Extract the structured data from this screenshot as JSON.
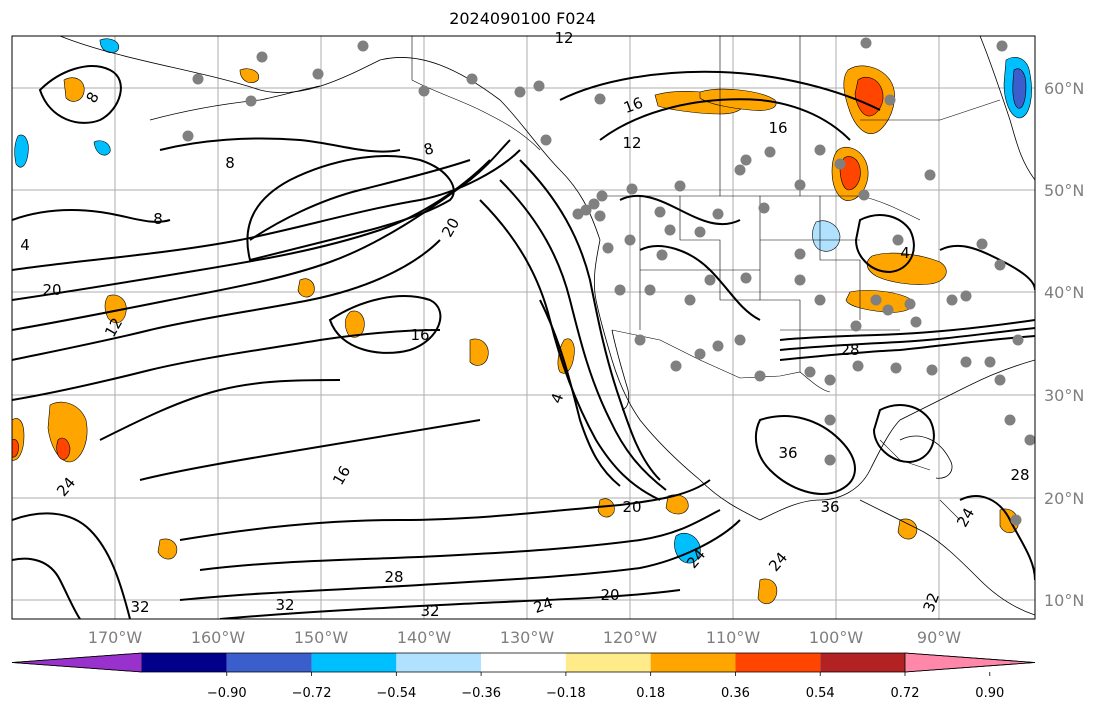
{
  "title": "2024090100 F024",
  "map": {
    "lat_ticks": [
      "60°N",
      "50°N",
      "40°N",
      "30°N",
      "20°N",
      "10°N"
    ],
    "lon_ticks": [
      "170°W",
      "160°W",
      "150°W",
      "140°W",
      "130°W",
      "120°W",
      "110°W",
      "100°W",
      "90°W"
    ],
    "colors": {
      "contour": "#000000",
      "grid": "#999999",
      "coast": "#000000",
      "station_marker": "#808080"
    },
    "contour_labels": [
      "12",
      "8",
      "16",
      "4",
      "20",
      "8",
      "12",
      "16",
      "8",
      "12",
      "20",
      "16",
      "28",
      "36",
      "24",
      "32",
      "28",
      "32",
      "24",
      "20",
      "32",
      "24",
      "20",
      "16",
      "24",
      "4",
      "8",
      "4",
      "28",
      "24",
      "32",
      "36"
    ]
  },
  "colorbar": {
    "colors": [
      "#9932cc",
      "#00008b",
      "#3a5fcd",
      "#00bfff",
      "#b0e2ff",
      "#ffffff",
      "#ffeb8a",
      "#ffa500",
      "#ff4500",
      "#b22222",
      "#ff88aa"
    ],
    "tick_labels": [
      "−0.90",
      "−0.72",
      "−0.54",
      "−0.36",
      "−0.18",
      "0.18",
      "0.36",
      "0.54",
      "0.72",
      "0.90"
    ]
  }
}
